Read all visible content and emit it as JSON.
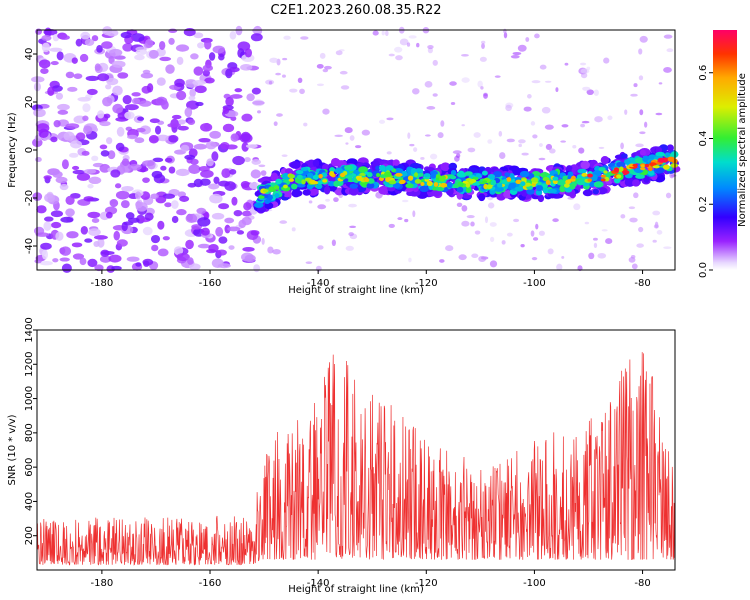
{
  "title": "C2E1.2023.260.08.35.R22",
  "chart_data": [
    {
      "type": "heatmap",
      "xlabel": "Height of straight line (km)",
      "ylabel": "Frequency (Hz)",
      "xlim": [
        -192,
        -74
      ],
      "ylim": [
        -50,
        50
      ],
      "xticks": [
        -180,
        -160,
        -140,
        -120,
        -100,
        -80
      ],
      "yticks": [
        -40,
        -20,
        0,
        20,
        40
      ],
      "colormap": "rainbow (white at zero)",
      "colorbar": {
        "label": "Normalized spectral amplitude",
        "range": [
          0,
          0.73
        ],
        "ticks": [
          0.0,
          0.2,
          0.4,
          0.6
        ]
      },
      "features": [
        {
          "region": "noise",
          "x_range": [
            -192,
            -151
          ],
          "freq_range": [
            -50,
            50
          ],
          "amplitude_range": [
            0.02,
            0.12
          ]
        },
        {
          "region": "signal_band",
          "x_range": [
            -151,
            -74
          ],
          "center_freq": [
            {
              "x": -151,
              "f": -20
            },
            {
              "x": -145,
              "f": -12
            },
            {
              "x": -130,
              "f": -11
            },
            {
              "x": -115,
              "f": -13
            },
            {
              "x": -100,
              "f": -14
            },
            {
              "x": -90,
              "f": -12
            },
            {
              "x": -80,
              "f": -7
            },
            {
              "x": -75,
              "f": -5
            }
          ],
          "bandwidth_hz": 8,
          "amplitude_range": [
            0.1,
            0.73
          ]
        }
      ]
    },
    {
      "type": "line",
      "xlabel": "Height of straight line (km)",
      "ylabel": "SNR (10 * v/v)",
      "xlim": [
        -192,
        -74
      ],
      "ylim": [
        0,
        1400
      ],
      "xticks": [
        -180,
        -160,
        -140,
        -120,
        -100,
        -80
      ],
      "yticks": [
        200,
        400,
        600,
        800,
        1000,
        1200,
        1400
      ],
      "color": "#ee3030",
      "envelope": [
        {
          "x": -192,
          "peak": 300
        },
        {
          "x": -152,
          "peak": 320
        },
        {
          "x": -150,
          "peak": 780
        },
        {
          "x": -140,
          "peak": 1000
        },
        {
          "x": -137,
          "peak": 1330
        },
        {
          "x": -133,
          "peak": 1220
        },
        {
          "x": -127,
          "peak": 1000
        },
        {
          "x": -118,
          "peak": 720
        },
        {
          "x": -108,
          "peak": 600
        },
        {
          "x": -97,
          "peak": 820
        },
        {
          "x": -91,
          "peak": 820
        },
        {
          "x": -85,
          "peak": 1130
        },
        {
          "x": -80,
          "peak": 1380
        },
        {
          "x": -77,
          "peak": 980
        },
        {
          "x": -74,
          "peak": 600
        }
      ],
      "floor": [
        {
          "x": -192,
          "low": 30
        },
        {
          "x": -152,
          "low": 30
        },
        {
          "x": -150,
          "low": 60
        },
        {
          "x": -74,
          "low": 60
        }
      ]
    }
  ]
}
